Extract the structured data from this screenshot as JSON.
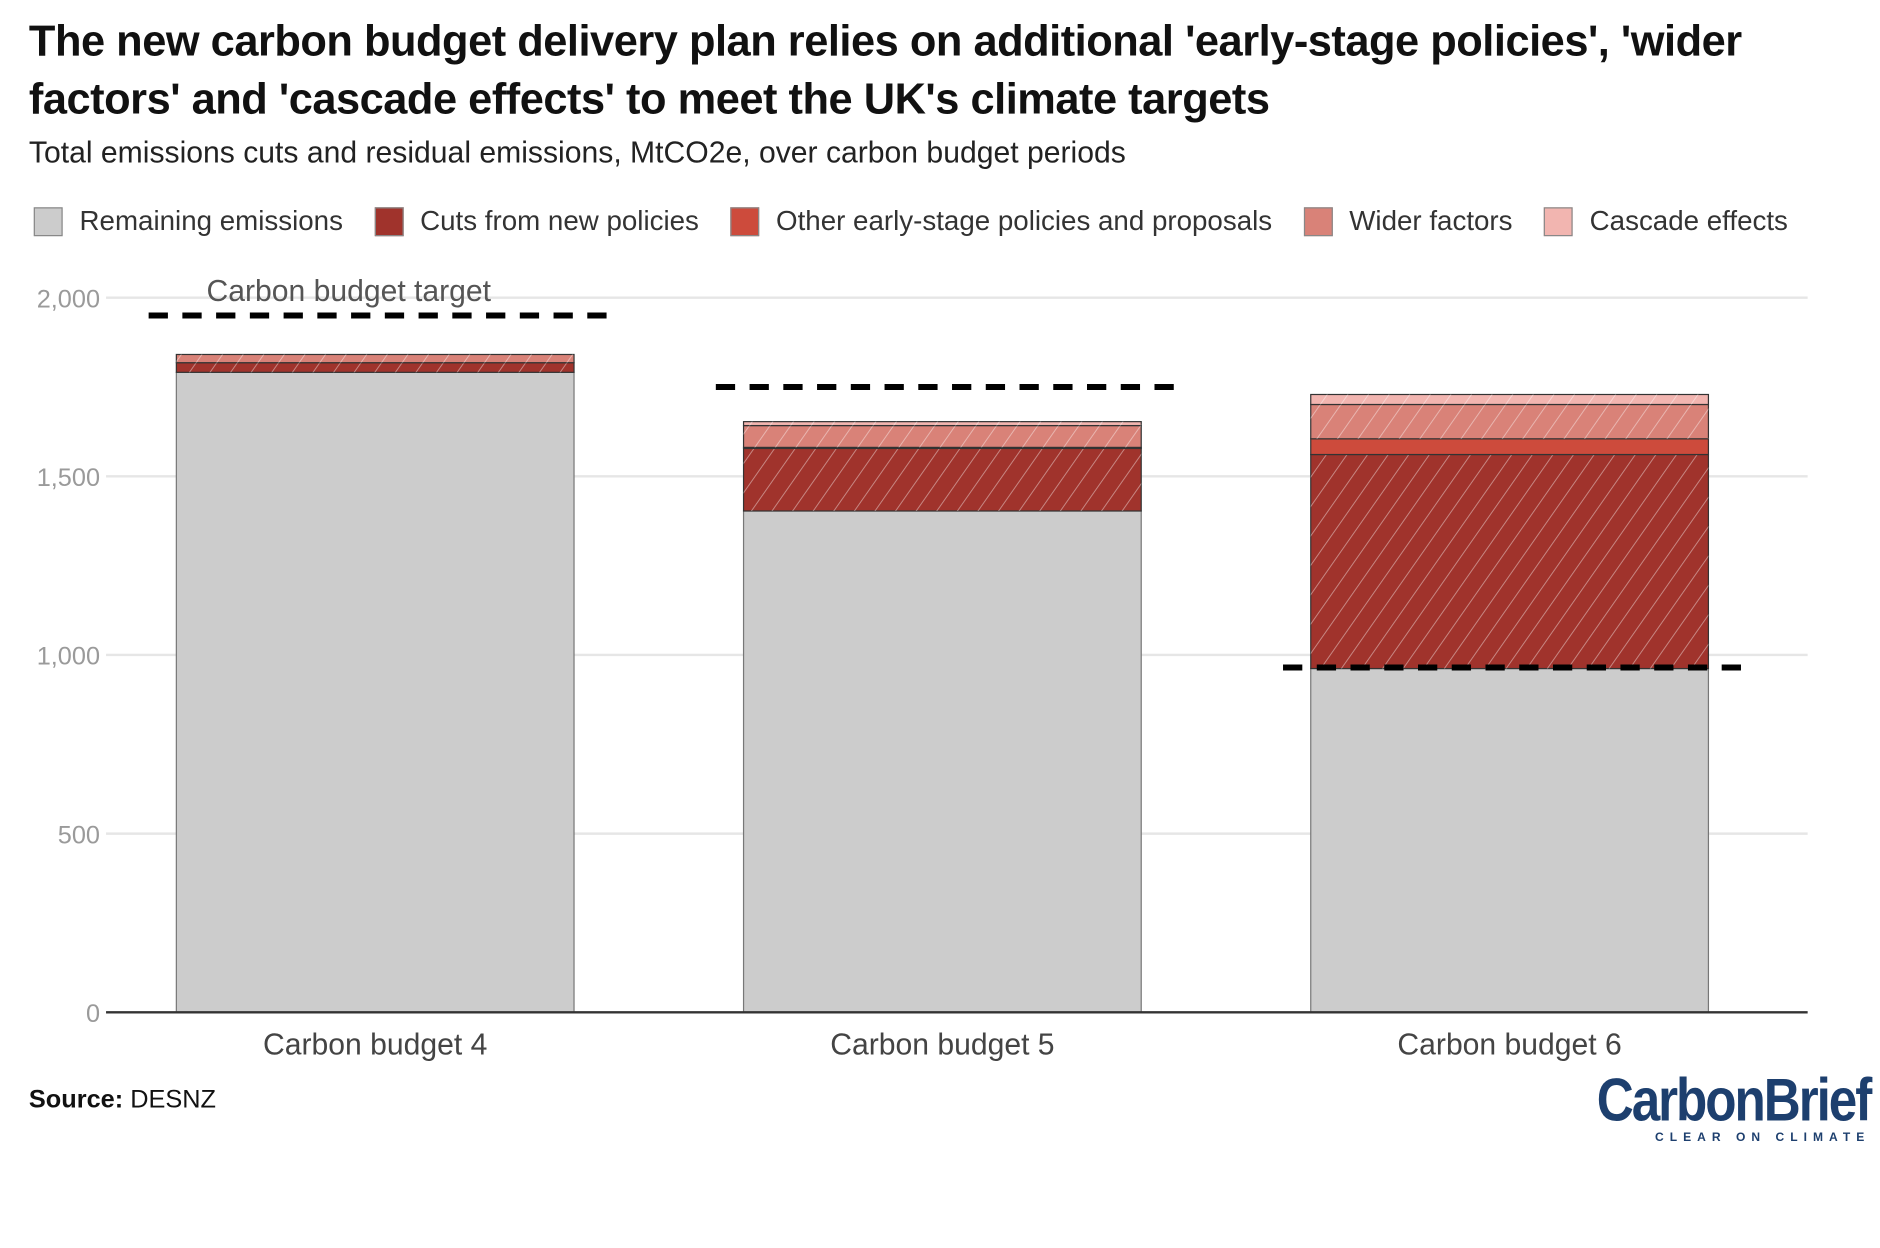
{
  "title": "The new carbon budget delivery plan relies on additional 'early-stage policies', 'wider factors' and 'cascade effects' to meet the UK's climate targets",
  "subtitle": "Total emissions cuts and residual emissions, MtCO2e, over carbon budget periods",
  "source_label": "Source:",
  "source_value": "DESNZ",
  "logo": {
    "name": "CarbonBrief",
    "tagline": "CLEAR ON CLIMATE"
  },
  "chart_data": {
    "type": "bar",
    "stacked": true,
    "categories": [
      "Carbon budget 4",
      "Carbon budget 5",
      "Carbon budget 6"
    ],
    "series": [
      {
        "name": "Remaining emissions",
        "color": "#cccccc",
        "hatched": false,
        "values": [
          1791,
          1403,
          962
        ]
      },
      {
        "name": "Cuts from new policies",
        "color": "#a0332c",
        "hatched": true,
        "values": [
          27,
          175,
          599
        ]
      },
      {
        "name": "Other early-stage policies and proposals",
        "color": "#cd4b3c",
        "hatched": false,
        "values": [
          0,
          3,
          44
        ]
      },
      {
        "name": "Wider factors",
        "color": "#d98278",
        "hatched": true,
        "values": [
          23,
          61,
          96
        ]
      },
      {
        "name": "Cascade effects",
        "color": "#f2b5b0",
        "hatched": true,
        "values": [
          0,
          11,
          28
        ]
      }
    ],
    "targets": {
      "label": "Carbon budget target",
      "values": [
        1950,
        1750,
        965
      ]
    },
    "ylim": [
      0,
      2000
    ],
    "yticks": [
      0,
      500,
      1000,
      1500,
      2000
    ],
    "ytick_labels": [
      "0",
      "500",
      "1,000",
      "1,500",
      "2,000"
    ],
    "grid": true,
    "legend_position": "top",
    "xlabel": "",
    "ylabel": ""
  }
}
